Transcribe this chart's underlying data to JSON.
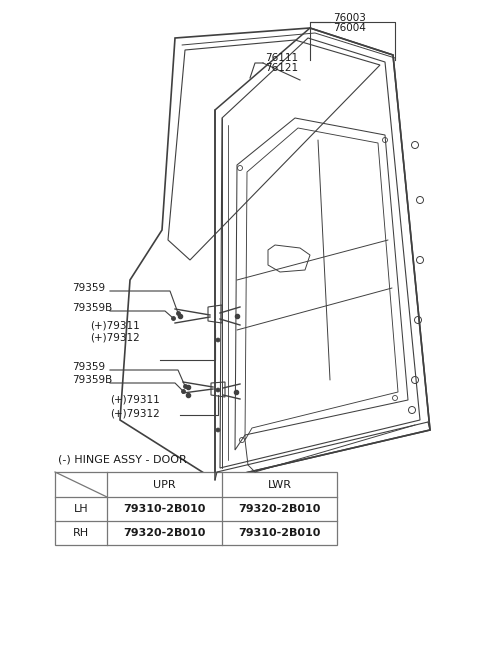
{
  "bg_color": "#ffffff",
  "line_color": "#404040",
  "text_color": "#1a1a1a",
  "table_border_color": "#777777",
  "table_title": "(-) HINGE ASSY - DOOR",
  "table_rows": [
    [
      "LH",
      "79310-2B010",
      "79320-2B010"
    ],
    [
      "RH",
      "79320-2B010",
      "79310-2B010"
    ]
  ],
  "label_76003": "76003",
  "label_76004": "76004",
  "label_76111": "76111",
  "label_76121": "76121",
  "label_79359_u": "79359",
  "label_79359B_u": "79359B",
  "label_79311_u": "(+)79311",
  "label_79312_u": "(+)79312",
  "label_79359_l": "79359",
  "label_79359B_l": "79359B",
  "label_79311_l": "(+)79311",
  "label_79312_l": "(+)79312"
}
